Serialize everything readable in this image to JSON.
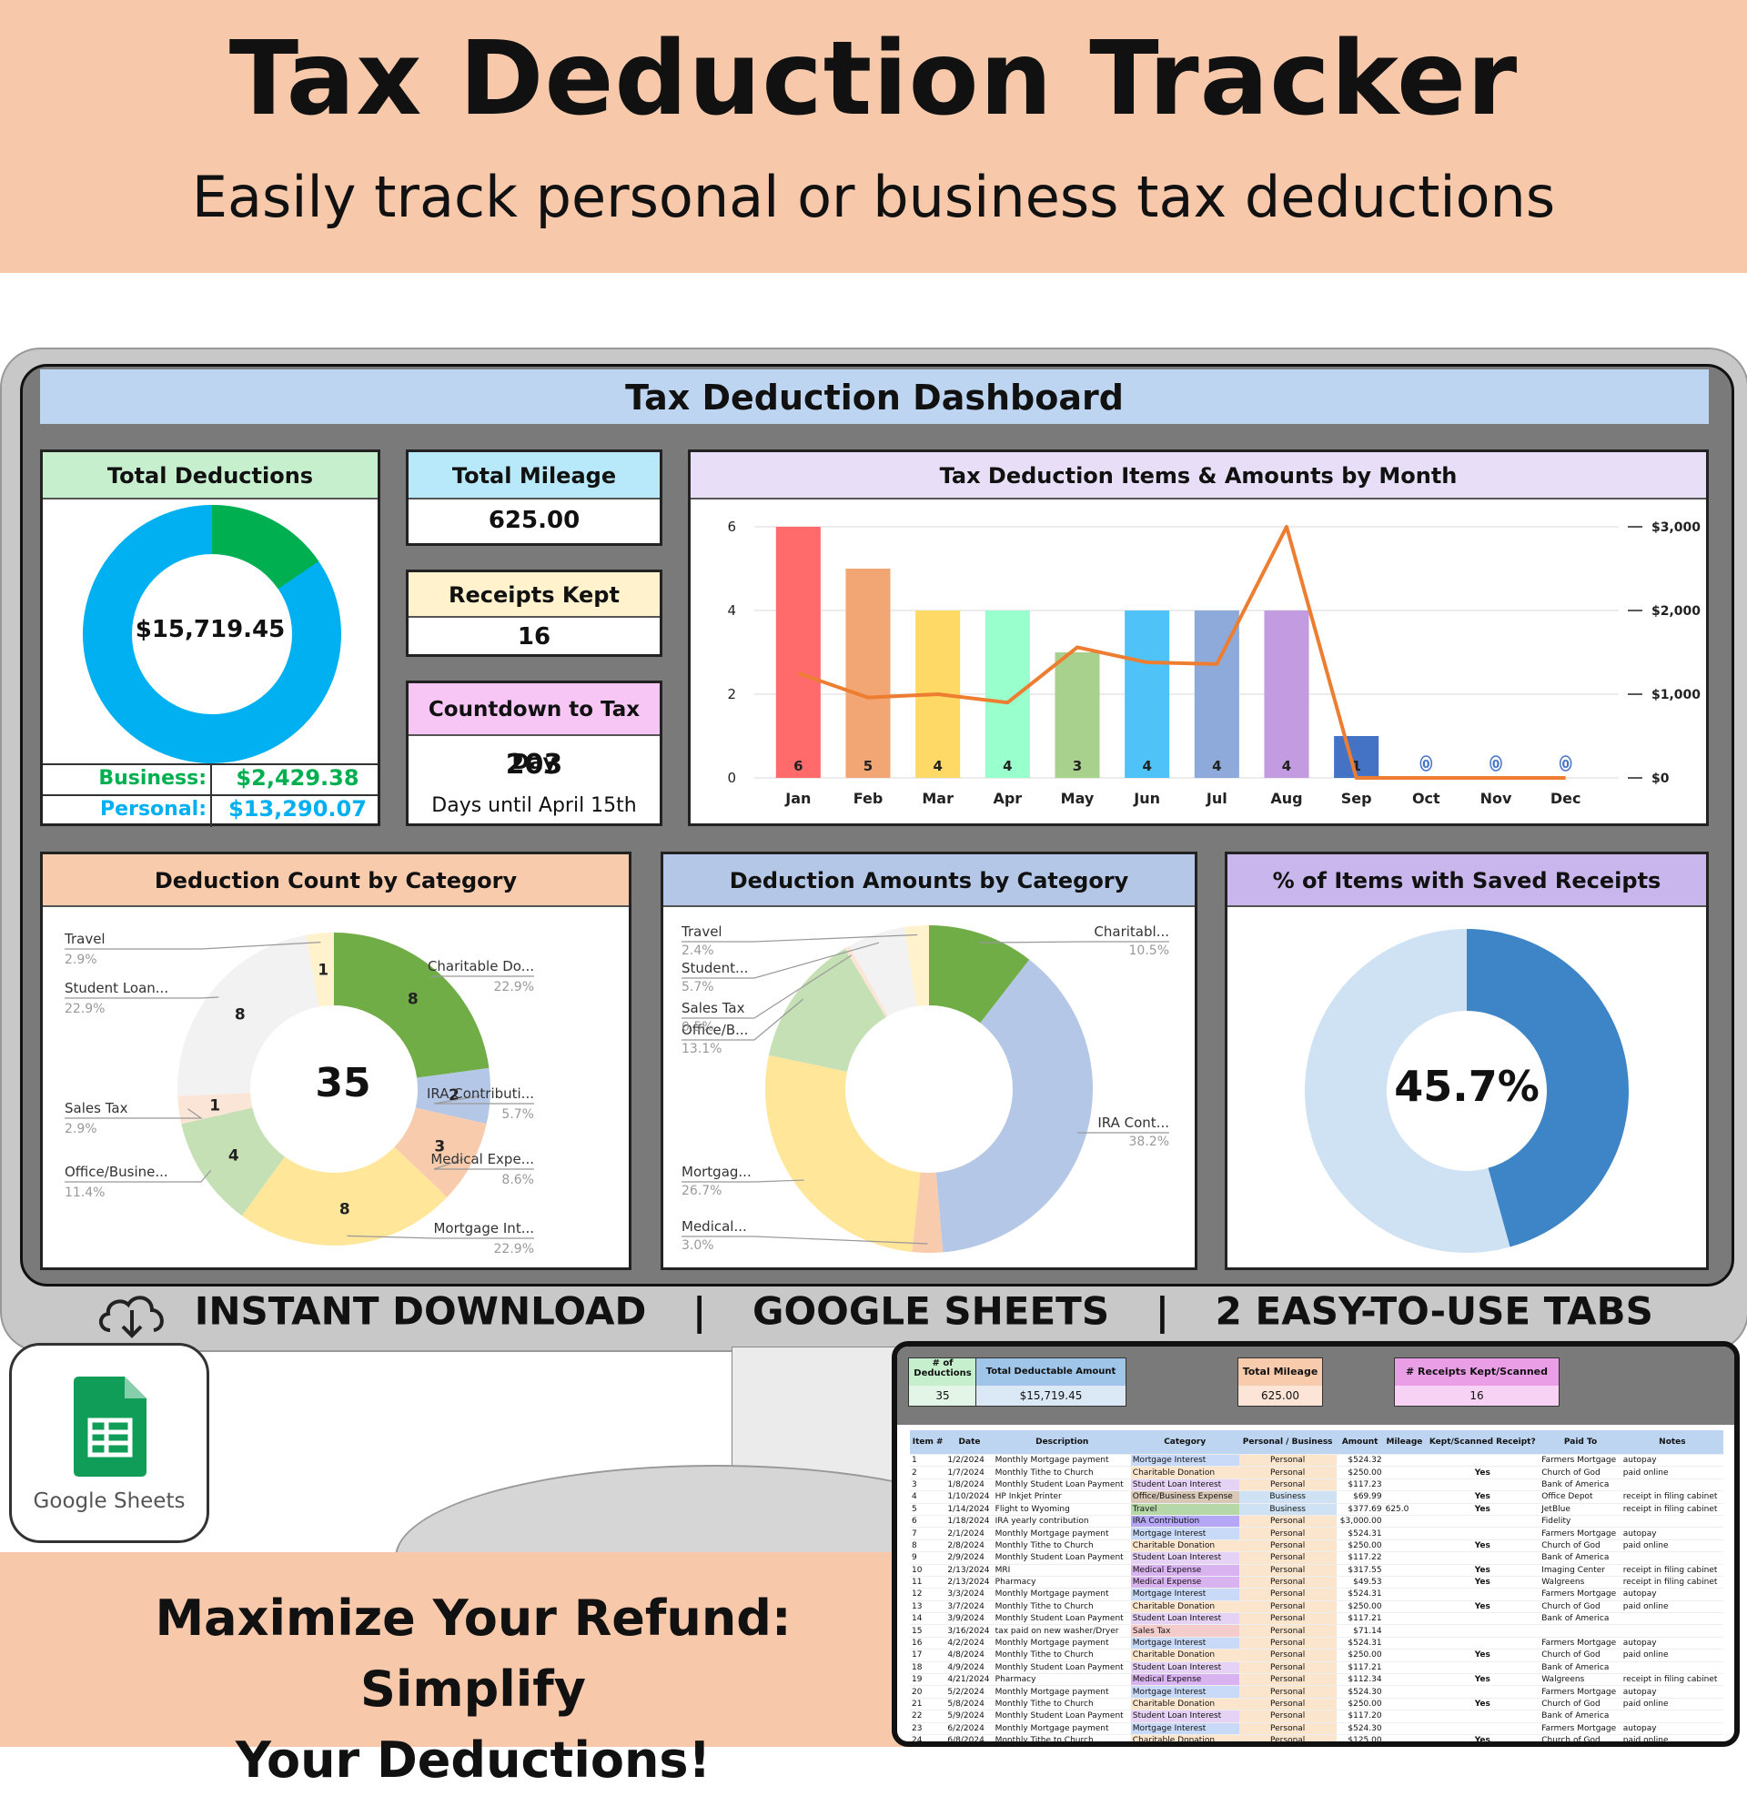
{
  "header": {
    "title": "Tax Deduction Tracker",
    "subtitle": "Easily track personal or business tax deductions"
  },
  "dashboard": {
    "title": "Tax Deduction Dashboard",
    "total_deductions": {
      "label": "Total Deductions",
      "value": "$15,719.45",
      "business_label": "Business:",
      "business_value": "$2,429.38",
      "personal_label": "Personal:",
      "personal_value": "$13,290.07",
      "business_color": "#00b050",
      "personal_color": "#00b0f0"
    },
    "total_mileage": {
      "label": "Total Mileage",
      "value": "625.00"
    },
    "receipts_kept": {
      "label": "Receipts Kept",
      "value": "16"
    },
    "countdown": {
      "label": "Countdown to Tax Day",
      "value": "203",
      "caption": "Days until April 15th"
    },
    "monthly_chart_title": "Tax Deduction Items & Amounts by Month",
    "count_chart_title": "Deduction Count by Category",
    "count_total": "35",
    "amount_chart_title": "Deduction Amounts by Category",
    "receipts_chart_title": "% of Items with Saved Receipts",
    "receipts_pct": "45.7%"
  },
  "chart_data": [
    {
      "type": "bar",
      "title": "Tax Deduction Items & Amounts by Month",
      "categories": [
        "Jan",
        "Feb",
        "Mar",
        "Apr",
        "May",
        "Jun",
        "Jul",
        "Aug",
        "Sep",
        "Oct",
        "Nov",
        "Dec"
      ],
      "series": [
        {
          "values": [
            6,
            5,
            4,
            4,
            3,
            4,
            4,
            4,
            1,
            0,
            0,
            0
          ],
          "colors": [
            "#ff6b6b",
            "#f2a673",
            "#ffd966",
            "#99ffcc",
            "#a9d18e",
            "#4fc3f7",
            "#8eaadb",
            "#c39be0",
            "#4472c4",
            "#4472c4",
            "#4472c4",
            "#4472c4"
          ]
        },
        {
          "type": "line",
          "values": [
            1250,
            960,
            1000,
            900,
            1560,
            1380,
            1360,
            3000,
            0,
            0,
            0,
            0
          ],
          "color": "#ed7d31"
        }
      ],
      "ylim": [
        0,
        6
      ],
      "y2lim": [
        0,
        3000
      ],
      "yticks": [
        "0",
        "2",
        "4",
        "6"
      ],
      "y2ticks": [
        "$0",
        "$1,000",
        "$2,000",
        "$3,000"
      ],
      "data_labels": [
        "6",
        "5",
        "4",
        "4",
        "3",
        "4",
        "4",
        "4",
        "1",
        "0",
        "0",
        "0"
      ]
    },
    {
      "type": "pie",
      "title": "Deduction Count by Category",
      "slices": [
        {
          "label": "Charitable Do...",
          "pct": "22.9%",
          "value": 8,
          "color": "#70ad47"
        },
        {
          "label": "IRA Contributi...",
          "pct": "5.7%",
          "value": 2,
          "color": "#b4c7e7"
        },
        {
          "label": "Medical Expe...",
          "pct": "8.6%",
          "value": 3,
          "color": "#f8cbad"
        },
        {
          "label": "Mortgage Int...",
          "pct": "22.9%",
          "value": 8,
          "color": "#ffe699"
        },
        {
          "label": "Office/Busine...",
          "pct": "11.4%",
          "value": 4,
          "color": "#c5e0b4"
        },
        {
          "label": "Sales Tax",
          "pct": "2.9%",
          "value": 1,
          "color": "#fbe5d6"
        },
        {
          "label": "Student Loan...",
          "pct": "22.9%",
          "value": 8,
          "color": "#f2f2f2"
        },
        {
          "label": "Travel",
          "pct": "2.9%",
          "value": 1,
          "color": "#fff2cc"
        }
      ]
    },
    {
      "type": "pie",
      "title": "Deduction Amounts by Category",
      "slices": [
        {
          "label": "Charitabl...",
          "pct": "10.5%",
          "value": 10.5,
          "color": "#70ad47"
        },
        {
          "label": "IRA Cont...",
          "pct": "38.2%",
          "value": 38.2,
          "color": "#b4c7e7"
        },
        {
          "label": "Medical...",
          "pct": "3.0%",
          "value": 3.0,
          "color": "#f8cbad"
        },
        {
          "label": "Mortgag...",
          "pct": "26.7%",
          "value": 26.7,
          "color": "#ffe699"
        },
        {
          "label": "Office/B...",
          "pct": "13.1%",
          "value": 13.1,
          "color": "#c5e0b4"
        },
        {
          "label": "Sales Tax",
          "pct": "0.5%",
          "value": 0.5,
          "color": "#fbe5d6"
        },
        {
          "label": "Student...",
          "pct": "5.7%",
          "value": 5.7,
          "color": "#f2f2f2"
        },
        {
          "label": "Travel",
          "pct": "2.4%",
          "value": 2.4,
          "color": "#fff2cc"
        }
      ]
    },
    {
      "type": "pie",
      "title": "% of Items with Saved Receipts",
      "slices": [
        {
          "value": 45.7,
          "color": "#3d85c6"
        },
        {
          "value": 54.3,
          "color": "#cfe2f3"
        }
      ]
    }
  ],
  "footer": {
    "download": "INSTANT DOWNLOAD",
    "sep": "|",
    "sheets": "GOOGLE SHEETS",
    "tabs": "2 EASY-TO-USE TABS",
    "tagline_1": "Maximize Your Refund: Simplify",
    "tagline_2": "Your Deductions!",
    "logo_text": "Google Sheets"
  },
  "sheet": {
    "summary": {
      "count_label": "# of Deductions",
      "count_value": "35",
      "total_label": "Total Deductable Amount",
      "total_value": "$15,719.45",
      "mileage_label": "Total Mileage",
      "mileage_value": "625.00",
      "receipts_label": "# Receipts Kept/Scanned",
      "receipts_value": "16"
    },
    "columns": [
      "Item #",
      "Date",
      "Description",
      "Category",
      "Personal / Business",
      "Amount",
      "Mileage",
      "Kept/Scanned Receipt?",
      "Paid To",
      "Notes"
    ],
    "rows": [
      [
        "1",
        "1/2/2024",
        "Monthly Mortgage payment",
        "Mortgage Interest",
        "Personal",
        "$524.32",
        "",
        "",
        "Farmers Mortgage",
        "autopay"
      ],
      [
        "2",
        "1/7/2024",
        "Monthly Tithe to Church",
        "Charitable Donation",
        "Personal",
        "$250.00",
        "",
        "Yes",
        "Church of God",
        "paid online"
      ],
      [
        "3",
        "1/8/2024",
        "Monthly Student Loan Payment",
        "Student Loan Interest",
        "Personal",
        "$117.23",
        "",
        "",
        "Bank of America",
        ""
      ],
      [
        "4",
        "1/10/2024",
        "HP Inkjet Printer",
        "Office/Business Expense",
        "Business",
        "$69.99",
        "",
        "Yes",
        "Office Depot",
        "receipt in filing cabinet"
      ],
      [
        "5",
        "1/14/2024",
        "Flight to Wyoming",
        "Travel",
        "Business",
        "$377.69",
        "625.0",
        "Yes",
        "JetBlue",
        "receipt in filing cabinet"
      ],
      [
        "6",
        "1/18/2024",
        "IRA yearly contribution",
        "IRA Contribution",
        "Personal",
        "$3,000.00",
        "",
        "",
        "Fidelity",
        ""
      ],
      [
        "7",
        "2/1/2024",
        "Monthly Mortgage payment",
        "Mortgage Interest",
        "Personal",
        "$524.31",
        "",
        "",
        "Farmers Mortgage",
        "autopay"
      ],
      [
        "8",
        "2/8/2024",
        "Monthly Tithe to Church",
        "Charitable Donation",
        "Personal",
        "$250.00",
        "",
        "Yes",
        "Church of God",
        "paid online"
      ],
      [
        "9",
        "2/9/2024",
        "Monthly Student Loan Payment",
        "Student Loan Interest",
        "Personal",
        "$117.22",
        "",
        "",
        "Bank of America",
        ""
      ],
      [
        "10",
        "2/13/2024",
        "MRI",
        "Medical Expense",
        "Personal",
        "$317.55",
        "",
        "Yes",
        "Imaging Center",
        "receipt in filing cabinet"
      ],
      [
        "11",
        "2/13/2024",
        "Pharmacy",
        "Medical Expense",
        "Personal",
        "$49.53",
        "",
        "Yes",
        "Walgreens",
        "receipt in filing cabinet"
      ],
      [
        "12",
        "3/3/2024",
        "Monthly Mortgage payment",
        "Mortgage Interest",
        "Personal",
        "$524.31",
        "",
        "",
        "Farmers Mortgage",
        "autopay"
      ],
      [
        "13",
        "3/7/2024",
        "Monthly Tithe to Church",
        "Charitable Donation",
        "Personal",
        "$250.00",
        "",
        "Yes",
        "Church of God",
        "paid online"
      ],
      [
        "14",
        "3/9/2024",
        "Monthly Student Loan Payment",
        "Student Loan Interest",
        "Personal",
        "$117.21",
        "",
        "",
        "Bank of America",
        ""
      ],
      [
        "15",
        "3/16/2024",
        "tax paid on new washer/Dryer",
        "Sales Tax",
        "Personal",
        "$71.14",
        "",
        "",
        "",
        ""
      ],
      [
        "16",
        "4/2/2024",
        "Monthly Mortgage payment",
        "Mortgage Interest",
        "Personal",
        "$524.31",
        "",
        "",
        "Farmers Mortgage",
        "autopay"
      ],
      [
        "17",
        "4/8/2024",
        "Monthly Tithe to Church",
        "Charitable Donation",
        "Personal",
        "$250.00",
        "",
        "Yes",
        "Church of God",
        "paid online"
      ],
      [
        "18",
        "4/9/2024",
        "Monthly Student Loan Payment",
        "Student Loan Interest",
        "Personal",
        "$117.21",
        "",
        "",
        "Bank of America",
        ""
      ],
      [
        "19",
        "4/21/2024",
        "Pharmacy",
        "Medical Expense",
        "Personal",
        "$112.34",
        "",
        "Yes",
        "Walgreens",
        "receipt in filing cabinet"
      ],
      [
        "20",
        "5/2/2024",
        "Monthly Mortgage payment",
        "Mortgage Interest",
        "Personal",
        "$524.30",
        "",
        "",
        "Farmers Mortgage",
        "autopay"
      ],
      [
        "21",
        "5/8/2024",
        "Monthly Tithe to Church",
        "Charitable Donation",
        "Personal",
        "$250.00",
        "",
        "Yes",
        "Church of God",
        "paid online"
      ],
      [
        "22",
        "5/9/2024",
        "Monthly Student Loan Payment",
        "Student Loan Interest",
        "Personal",
        "$117.20",
        "",
        "",
        "Bank of America",
        ""
      ],
      [
        "23",
        "6/2/2024",
        "Monthly Mortgage payment",
        "Mortgage Interest",
        "Personal",
        "$524.30",
        "",
        "",
        "Farmers Mortgage",
        "autopay"
      ],
      [
        "24",
        "6/8/2024",
        "Monthly Tithe to Church",
        "Charitable Donation",
        "Personal",
        "$125.00",
        "",
        "Yes",
        "Church of God",
        "paid online"
      ]
    ],
    "category_colors": {
      "Mortgage Interest": "#c9daf8",
      "Charitable Donation": "#fce5cd",
      "Student Loan Interest": "#e6d2f5",
      "Office/Business Expense": "#d9c7b8",
      "Travel": "#b6d7a8",
      "IRA Contribution": "#b4a7f5",
      "Medical Expense": "#d9b3f0",
      "Sales Tax": "#f4cccc"
    }
  }
}
